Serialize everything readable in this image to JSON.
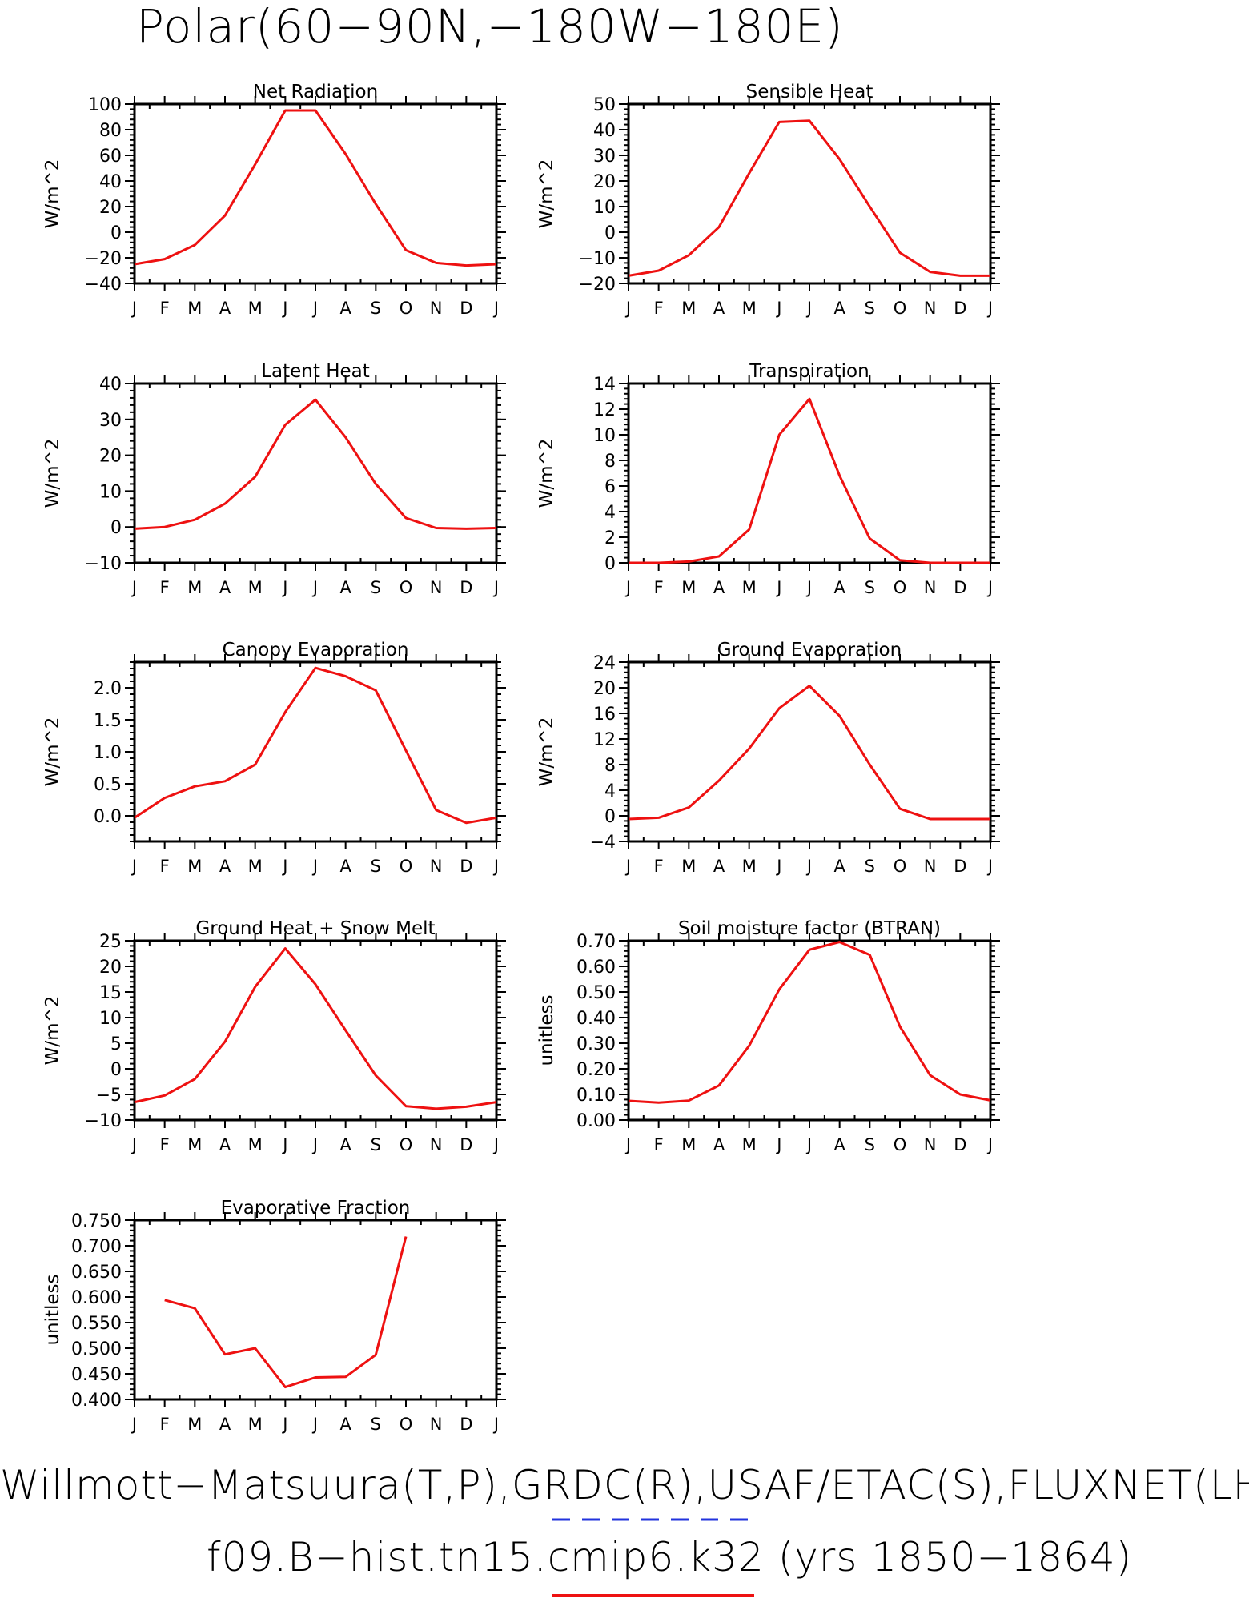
{
  "page_title": "Polar(60−90N,−180W−180E)",
  "footer": {
    "line1": "Willmott−Matsuura(T,P),GRDC(R),USAF/ETAC(S),FLUXNET(LHF,GP",
    "line2": "f09.B−hist.tn15.cmip6.k32 (yrs 1850−1864)"
  },
  "colors": {
    "series": "#ee1111",
    "obs_dash": "#2233dd",
    "axis": "#000000"
  },
  "chart_data": [
    {
      "type": "line",
      "title": "Net Radiation",
      "ylabel": "W/m^2",
      "ylim": [
        -40,
        100
      ],
      "yticks": [
        -40,
        -20,
        0,
        20,
        40,
        60,
        80,
        100
      ],
      "ytick_labels": [
        "−40",
        "−20",
        "0",
        "20",
        "40",
        "60",
        "80",
        "100"
      ],
      "categories": [
        "J",
        "F",
        "M",
        "A",
        "M",
        "J",
        "J",
        "A",
        "S",
        "O",
        "N",
        "D",
        "J"
      ],
      "values": [
        -25,
        -21,
        -10,
        13,
        53,
        95,
        95,
        61,
        22,
        -14,
        -24,
        -26,
        -25
      ]
    },
    {
      "type": "line",
      "title": "Sensible Heat",
      "ylabel": "W/m^2",
      "ylim": [
        -20,
        50
      ],
      "yticks": [
        -20,
        -10,
        0,
        10,
        20,
        30,
        40,
        50
      ],
      "ytick_labels": [
        "−20",
        "−10",
        "0",
        "10",
        "20",
        "30",
        "40",
        "50"
      ],
      "categories": [
        "J",
        "F",
        "M",
        "A",
        "M",
        "J",
        "J",
        "A",
        "S",
        "O",
        "N",
        "D",
        "J"
      ],
      "values": [
        -17,
        -15,
        -9,
        2,
        23,
        43,
        43.5,
        28.5,
        10,
        -8,
        -15.5,
        -17,
        -17
      ]
    },
    {
      "type": "line",
      "title": "Latent Heat",
      "ylabel": "W/m^2",
      "ylim": [
        -10,
        40
      ],
      "yticks": [
        -10,
        0,
        10,
        20,
        30,
        40
      ],
      "ytick_labels": [
        "−10",
        "0",
        "10",
        "20",
        "30",
        "40"
      ],
      "categories": [
        "J",
        "F",
        "M",
        "A",
        "M",
        "J",
        "J",
        "A",
        "S",
        "O",
        "N",
        "D",
        "J"
      ],
      "values": [
        -0.5,
        0,
        2,
        6.5,
        14,
        28.5,
        35.5,
        25,
        12,
        2.5,
        -0.3,
        -0.5,
        -0.3
      ]
    },
    {
      "type": "line",
      "title": "Transpiration",
      "ylabel": "W/m^2",
      "ylim": [
        0,
        14
      ],
      "yticks": [
        0,
        2,
        4,
        6,
        8,
        10,
        12,
        14
      ],
      "ytick_labels": [
        "0",
        "2",
        "4",
        "6",
        "8",
        "10",
        "12",
        "14"
      ],
      "categories": [
        "J",
        "F",
        "M",
        "A",
        "M",
        "J",
        "J",
        "A",
        "S",
        "O",
        "N",
        "D",
        "J"
      ],
      "values": [
        0,
        0,
        0.1,
        0.5,
        2.6,
        10,
        12.8,
        6.8,
        1.9,
        0.2,
        0,
        0,
        0
      ]
    },
    {
      "type": "line",
      "title": "Canopy Evaporation",
      "ylabel": "W/m^2",
      "ylim": [
        -0.4,
        2.4
      ],
      "yticks": [
        0,
        0.5,
        1,
        1.5,
        2
      ],
      "ytick_labels": [
        "0.0",
        "0.5",
        "1.0",
        "1.5",
        "2.0"
      ],
      "categories": [
        "J",
        "F",
        "M",
        "A",
        "M",
        "J",
        "J",
        "A",
        "S",
        "O",
        "N",
        "D",
        "J"
      ],
      "values": [
        -0.03,
        0.28,
        0.46,
        0.54,
        0.8,
        1.62,
        2.31,
        2.18,
        1.96,
        1.02,
        0.09,
        -0.11,
        -0.03
      ]
    },
    {
      "type": "line",
      "title": "Ground Evaporation",
      "ylabel": "W/m^2",
      "ylim": [
        -4,
        24
      ],
      "yticks": [
        -4,
        0,
        4,
        8,
        12,
        16,
        20,
        24
      ],
      "ytick_labels": [
        "−4",
        "0",
        "4",
        "8",
        "12",
        "16",
        "20",
        "24"
      ],
      "categories": [
        "J",
        "F",
        "M",
        "A",
        "M",
        "J",
        "J",
        "A",
        "S",
        "O",
        "N",
        "D",
        "J"
      ],
      "values": [
        -0.5,
        -0.3,
        1.3,
        5.5,
        10.5,
        16.8,
        20.3,
        15.6,
        8,
        1.1,
        -0.5,
        -0.5,
        -0.5
      ]
    },
    {
      "type": "line",
      "title": "Ground Heat + Snow Melt",
      "ylabel": "W/m^2",
      "ylim": [
        -10,
        25
      ],
      "yticks": [
        -10,
        -5,
        0,
        5,
        10,
        15,
        20,
        25
      ],
      "ytick_labels": [
        "−10",
        "−5",
        "0",
        "5",
        "10",
        "15",
        "20",
        "25"
      ],
      "categories": [
        "J",
        "F",
        "M",
        "A",
        "M",
        "J",
        "J",
        "A",
        "S",
        "O",
        "N",
        "D",
        "J"
      ],
      "values": [
        -6.5,
        -5.2,
        -2,
        5.3,
        16,
        23.5,
        16.5,
        7.5,
        -1.3,
        -7.3,
        -7.8,
        -7.4,
        -6.5
      ]
    },
    {
      "type": "line",
      "title": "Soil moisture factor (BTRAN)",
      "ylabel": "unitless",
      "ylim": [
        0,
        0.7
      ],
      "yticks": [
        0,
        0.1,
        0.2,
        0.3,
        0.4,
        0.5,
        0.6,
        0.7
      ],
      "ytick_labels": [
        "0.00",
        "0.10",
        "0.20",
        "0.30",
        "0.40",
        "0.50",
        "0.60",
        "0.70"
      ],
      "categories": [
        "J",
        "F",
        "M",
        "A",
        "M",
        "J",
        "J",
        "A",
        "S",
        "O",
        "N",
        "D",
        "J"
      ],
      "values": [
        0.075,
        0.068,
        0.076,
        0.135,
        0.29,
        0.51,
        0.665,
        0.695,
        0.645,
        0.365,
        0.175,
        0.1,
        0.077
      ]
    },
    {
      "type": "line",
      "title": "Evaporative Fraction",
      "ylabel": "unitless",
      "ylim": [
        0.4,
        0.75
      ],
      "yticks": [
        0.4,
        0.45,
        0.5,
        0.55,
        0.6,
        0.65,
        0.7,
        0.75
      ],
      "ytick_labels": [
        "0.400",
        "0.450",
        "0.500",
        "0.550",
        "0.600",
        "0.650",
        "0.700",
        "0.750"
      ],
      "categories": [
        "J",
        "F",
        "M",
        "A",
        "M",
        "J",
        "J",
        "A",
        "S",
        "O",
        "N",
        "D",
        "J"
      ],
      "values": [
        null,
        0.594,
        0.578,
        0.488,
        0.5,
        0.424,
        0.443,
        0.444,
        0.487,
        0.718,
        null,
        null,
        null
      ]
    }
  ]
}
